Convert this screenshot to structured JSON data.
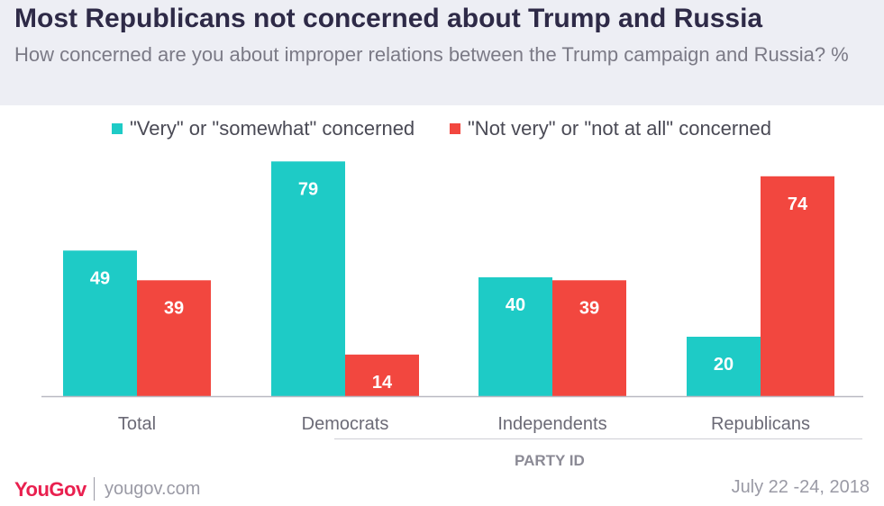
{
  "title": "Most Republicans not concerned about Trump and Russia",
  "subtitle": "How concerned are you about improper relations between the Trump campaign and Russia? %",
  "footer": {
    "brand": "YouGov",
    "site": "yougov.com",
    "date": "July 22 -24, 2018"
  },
  "group_label": "PARTY ID",
  "colors": {
    "concerned": "#1ecbc6",
    "not_concerned": "#f2473f"
  },
  "chart_data": {
    "type": "bar",
    "title": "Most Republicans not concerned about Trump and Russia",
    "categories": [
      "Total",
      "Democrats",
      "Independents",
      "Republicans"
    ],
    "series": [
      {
        "name": "\"Very\" or \"somewhat\" concerned",
        "values": [
          49,
          79,
          40,
          20
        ]
      },
      {
        "name": "\"Not very\" or \"not at all\" concerned",
        "values": [
          39,
          14,
          39,
          74
        ]
      }
    ],
    "ylim": [
      0,
      80
    ],
    "grid": false,
    "legend": "top-center"
  }
}
